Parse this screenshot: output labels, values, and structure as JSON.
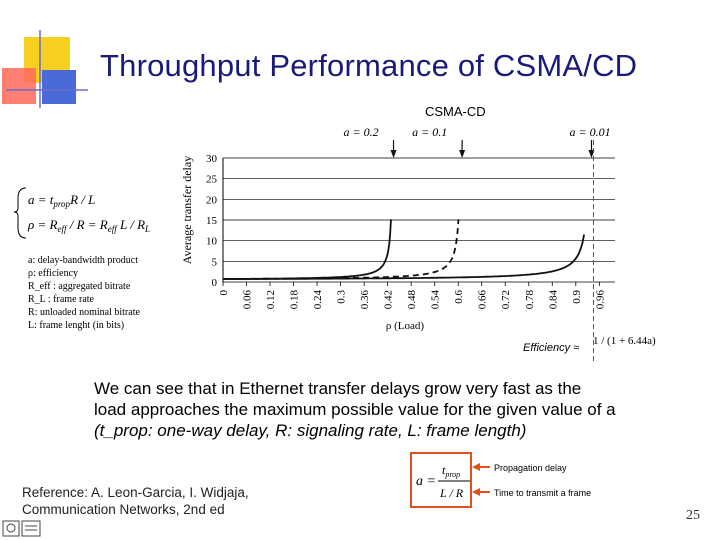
{
  "title": "Throughput Performance of CSMA/CD",
  "chart_data": {
    "type": "line",
    "title": "CSMA-CD",
    "ylabel": "Average transfer delay",
    "xlabel": "ρ (Load)",
    "ylim": [
      0,
      30
    ],
    "xlim": [
      0,
      1.0
    ],
    "yticks": [
      "0",
      "5",
      "10",
      "15",
      "20",
      "25",
      "30"
    ],
    "xticks": [
      "0",
      "0.06",
      "0.12",
      "0.18",
      "0.24",
      "0.3",
      "0.36",
      "0.42",
      "0.48",
      "0.54",
      "0.6",
      "0.66",
      "0.72",
      "0.78",
      "0.84",
      "0.9",
      "0.96"
    ],
    "series": [
      {
        "name": "a = 0.2",
        "style": "solid",
        "asymptote": 0.435
      },
      {
        "name": "a = 0.1",
        "style": "dashed",
        "asymptote": 0.61
      },
      {
        "name": "a = 0.01",
        "style": "solid",
        "asymptote": 0.94
      }
    ],
    "efficiency_label": "Efficiency ≈",
    "efficiency_formula": "1 / (1 + 6.44a)"
  },
  "formulas": {
    "line1": "a = t_prop R / L",
    "line2": "ρ = R_eff / R = R_eff L / R_L"
  },
  "legend": [
    "a: delay-bandwidth product",
    "ρ: efficiency",
    "R_eff : aggregated bitrate",
    "R_L :   frame rate",
    "R: unloaded nominal bitrate",
    "L: frame lenght (in bits)"
  ],
  "paragraph": {
    "line1": "We can see that in Ethernet transfer delays grow very fast as the",
    "line2": "load approaches the maximum possible value for the given value of a",
    "line3": "(t_prop: one-way delay, R: signaling rate, L: frame length)"
  },
  "inset": {
    "formula": "a = t_prop / (L / R)",
    "label_top": "Propagation delay",
    "label_bottom": "Time to transmit a frame"
  },
  "reference": {
    "line1": "Reference: A. Leon-Garcia, I. Widjaja,",
    "line2": "Communication Networks, 2nd ed"
  },
  "page_number": "25",
  "colors": {
    "title": "#1a1a7a",
    "accent_red": "#e05020",
    "accent_blue": "#4a6ad8",
    "accent_yellow": "#f5d020",
    "efficiency_line": "#cc2222"
  }
}
